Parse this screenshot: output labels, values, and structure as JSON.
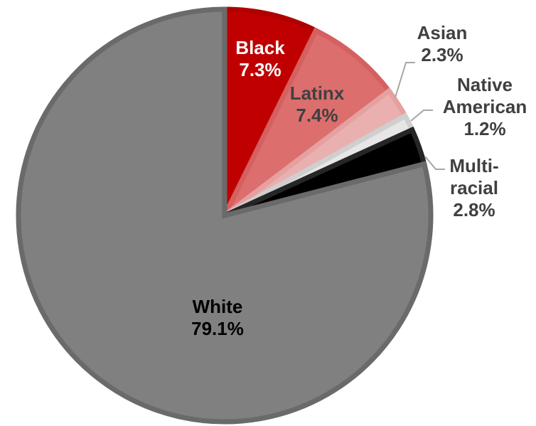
{
  "chart_data": {
    "type": "pie",
    "title": "",
    "start_angle_deg": 0,
    "direction": "clockwise",
    "legend": "none",
    "slices": [
      {
        "category": "Black",
        "line1": "Black",
        "line2": "",
        "line3": "",
        "percent_label": "7.3%",
        "value": 7.3,
        "color": "#c00000",
        "label_color": "#ffffff",
        "stroke": "#b00000"
      },
      {
        "category": "Latinx",
        "line1": "Latinx",
        "line2": "",
        "line3": "",
        "percent_label": "7.4%",
        "value": 7.4,
        "color": "#dc6e6e",
        "label_color": "#404040",
        "stroke": "#d46060"
      },
      {
        "category": "Asian",
        "line1": "Asian",
        "line2": "",
        "line3": "",
        "percent_label": "2.3%",
        "value": 2.3,
        "color": "#eab0b0",
        "label_color": "#404040",
        "stroke": "#e5a0a0"
      },
      {
        "category": "Native American",
        "line1": "Native",
        "line2": "American",
        "line3": "",
        "percent_label": "1.2%",
        "value": 1.2,
        "color": "#e6e6e6",
        "label_color": "#404040",
        "stroke": "#cfcfcf"
      },
      {
        "category": "Multi-racial",
        "line1": "Multi-",
        "line2": "racial",
        "line3": "",
        "percent_label": "2.8%",
        "value": 2.8,
        "color": "#000000",
        "label_color": "#404040",
        "stroke": "#262626"
      },
      {
        "category": "White",
        "line1": "White",
        "line2": "",
        "line3": "",
        "percent_label": "79.1%",
        "value": 79.1,
        "color": "#808080",
        "label_color": "#000000",
        "stroke": "#6a6a6a"
      }
    ],
    "leader_line_color": "#a6a6a6"
  }
}
